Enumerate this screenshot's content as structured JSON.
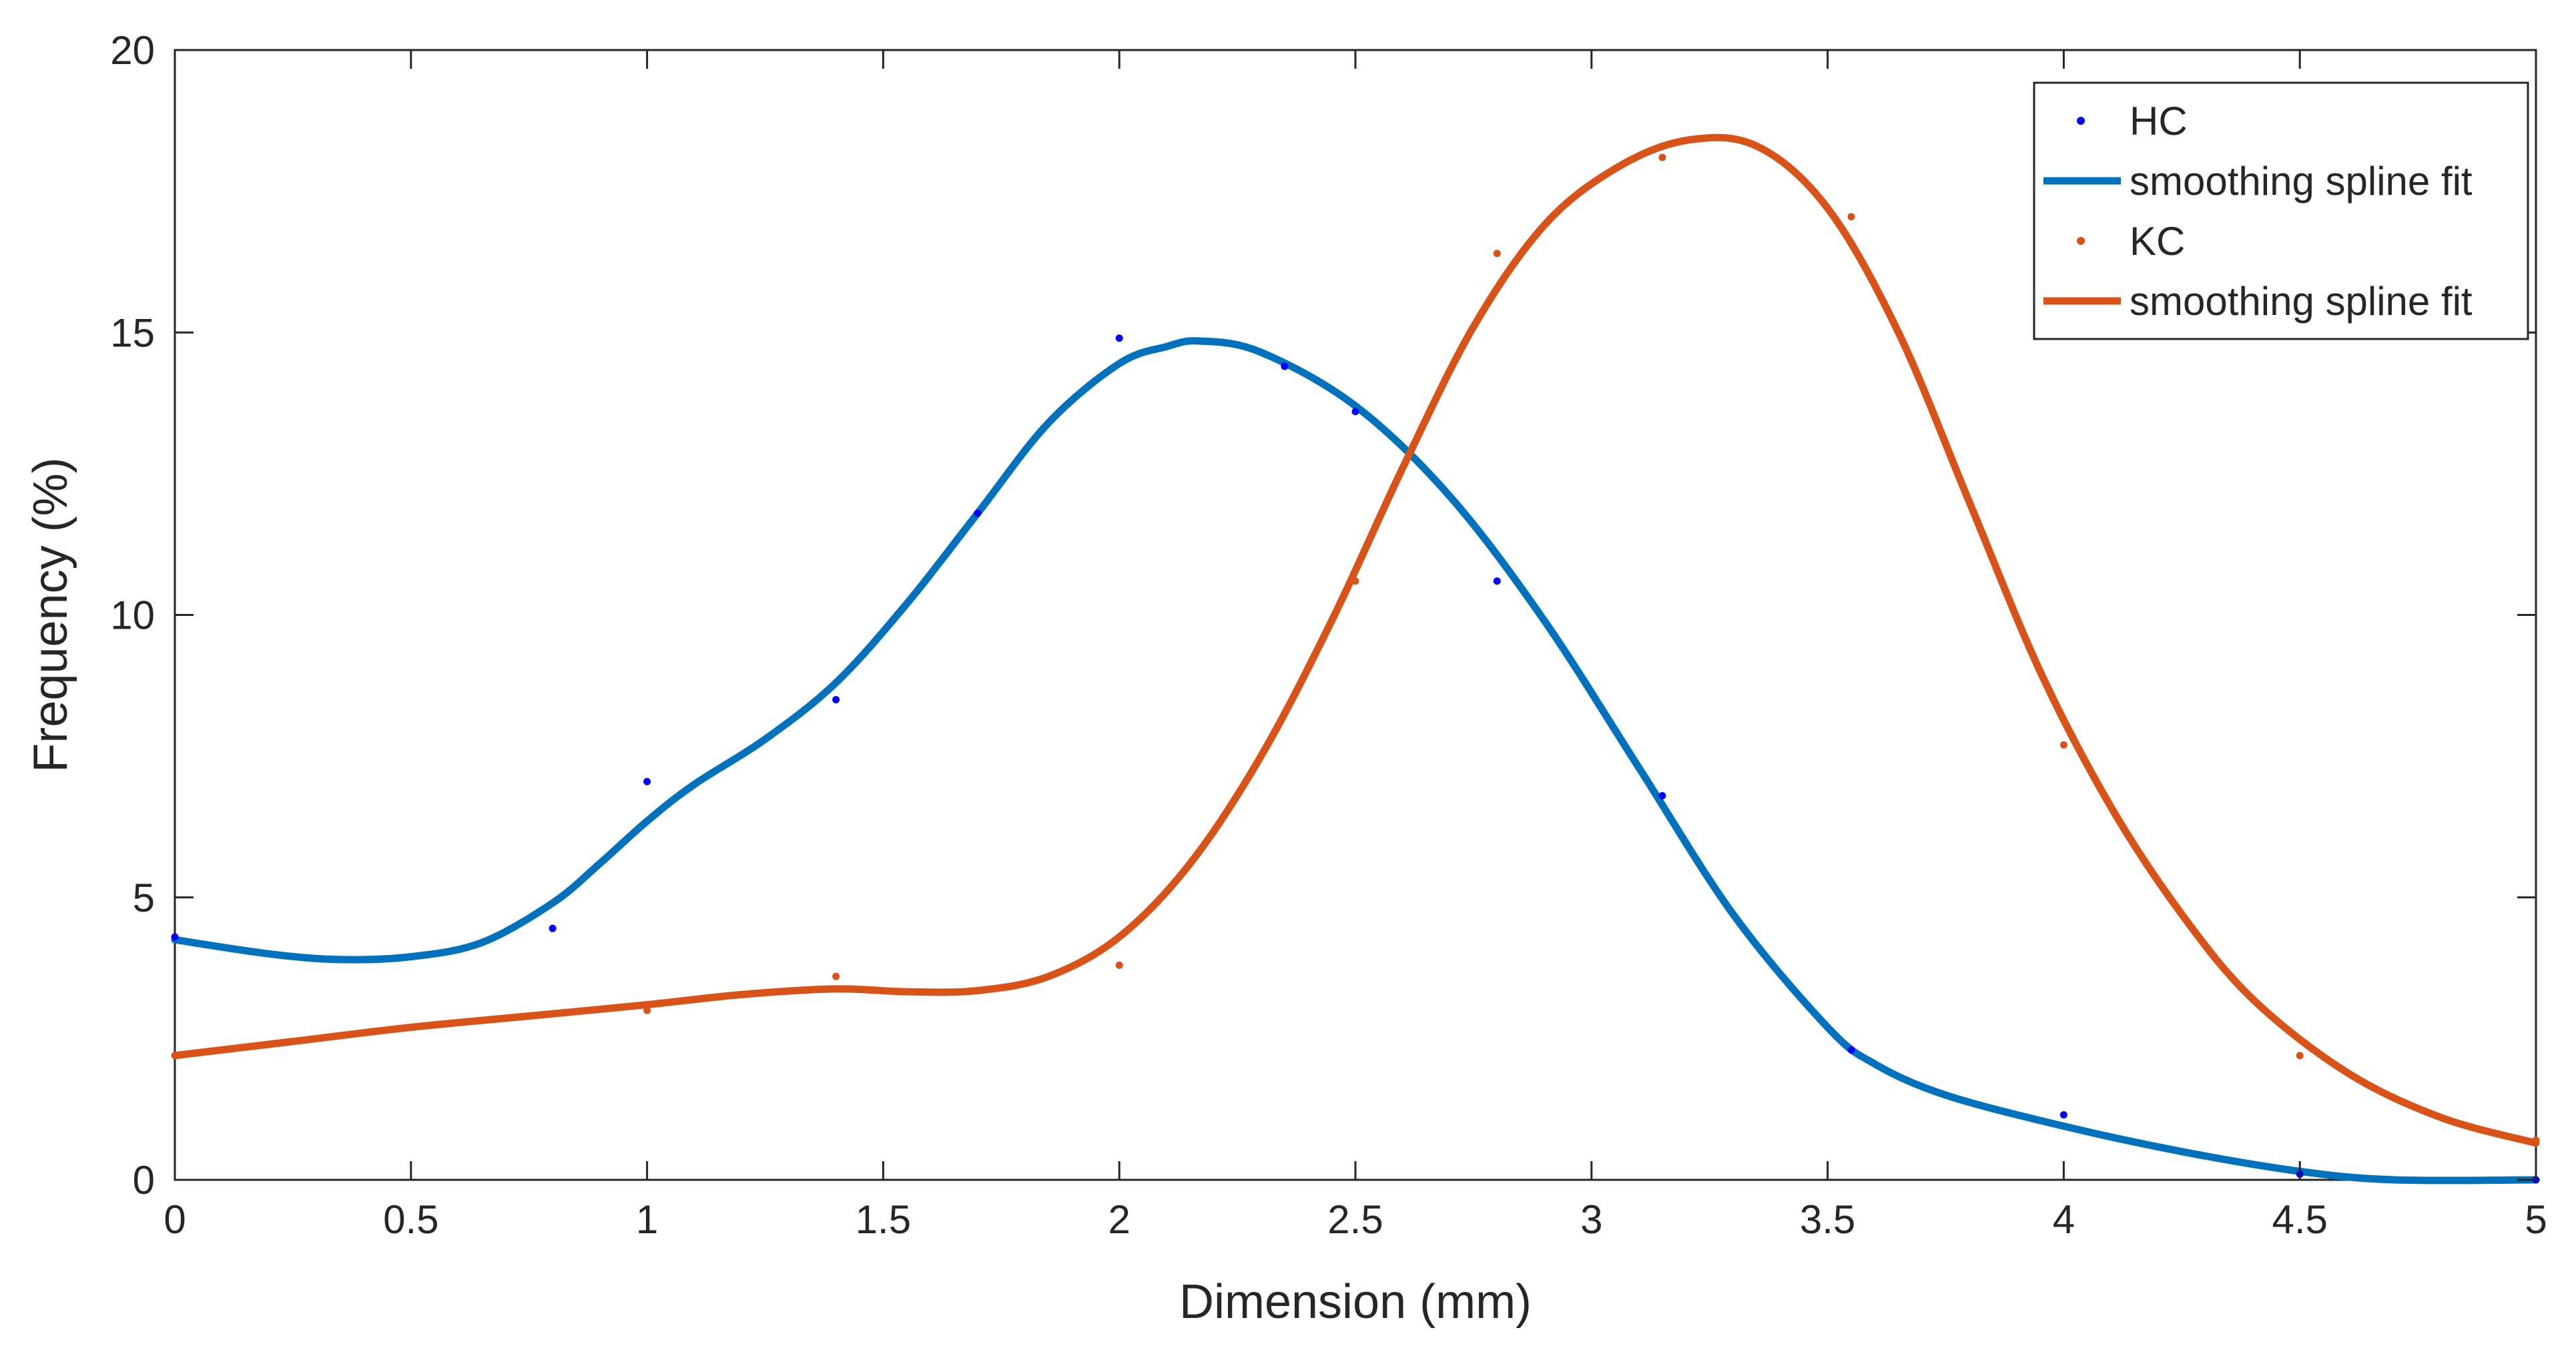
{
  "chart_data": {
    "type": "line",
    "xlabel": "Dimension (mm)",
    "ylabel": "Frequency (%)",
    "xlim": [
      0,
      5
    ],
    "ylim": [
      0,
      20
    ],
    "xticks": [
      "0",
      "0.5",
      "1",
      "1.5",
      "2",
      "2.5",
      "3",
      "3.5",
      "4",
      "4.5",
      "5"
    ],
    "yticks": [
      "0",
      "5",
      "10",
      "15",
      "20"
    ],
    "grid": false,
    "legend_position": "top-right",
    "series": [
      {
        "name": "HC",
        "kind": "points",
        "color": "#0000ff",
        "x": [
          0,
          0.8,
          1,
          1.4,
          1.7,
          2,
          2.35,
          2.5,
          2.8,
          3.15,
          3.55,
          4,
          4.5,
          5
        ],
        "y": [
          4.3,
          4.45,
          7.05,
          8.5,
          11.8,
          14.9,
          14.4,
          13.6,
          10.6,
          6.8,
          2.3,
          1.15,
          0.1,
          0.0
        ]
      },
      {
        "name": "smoothing spline fit",
        "kind": "line",
        "color": "#0072bd",
        "x": [
          0,
          0.2,
          0.35,
          0.5,
          0.65,
          0.8,
          0.9,
          1.0,
          1.1,
          1.25,
          1.4,
          1.55,
          1.7,
          1.85,
          2.0,
          2.1,
          2.17,
          2.3,
          2.5,
          2.7,
          2.9,
          3.1,
          3.3,
          3.5,
          3.6,
          3.75,
          4.0,
          4.25,
          4.5,
          4.7,
          5.0
        ],
        "y": [
          4.25,
          4.0,
          3.9,
          3.95,
          4.2,
          4.9,
          5.6,
          6.35,
          7.0,
          7.8,
          8.8,
          10.2,
          11.8,
          13.4,
          14.45,
          14.75,
          14.85,
          14.65,
          13.7,
          12.1,
          9.9,
          7.3,
          4.7,
          2.7,
          2.05,
          1.5,
          0.95,
          0.5,
          0.15,
          0.0,
          0.0
        ]
      },
      {
        "name": "KC",
        "kind": "points",
        "color": "#d95319",
        "x": [
          1,
          1.4,
          1.7,
          2,
          2.5,
          2.8,
          3.15,
          3.55,
          4,
          4.5,
          5
        ],
        "y": [
          3.0,
          3.6,
          3.35,
          3.8,
          10.6,
          16.4,
          18.1,
          17.05,
          7.7,
          2.2,
          0.7
        ]
      },
      {
        "name": "smoothing spline fit",
        "kind": "line",
        "color": "#d95319",
        "x": [
          0,
          0.25,
          0.5,
          0.75,
          1.0,
          1.2,
          1.4,
          1.55,
          1.7,
          1.85,
          2.0,
          2.15,
          2.3,
          2.45,
          2.6,
          2.75,
          2.9,
          3.05,
          3.2,
          3.35,
          3.5,
          3.65,
          3.8,
          3.95,
          4.1,
          4.25,
          4.4,
          4.6,
          4.8,
          5.0
        ],
        "y": [
          2.2,
          2.45,
          2.7,
          2.9,
          3.1,
          3.28,
          3.38,
          3.33,
          3.35,
          3.6,
          4.3,
          5.6,
          7.5,
          9.9,
          12.6,
          15.1,
          16.9,
          17.9,
          18.4,
          18.3,
          17.2,
          15.0,
          12.0,
          9.0,
          6.6,
          4.7,
          3.2,
          1.9,
          1.1,
          0.65
        ]
      }
    ]
  }
}
